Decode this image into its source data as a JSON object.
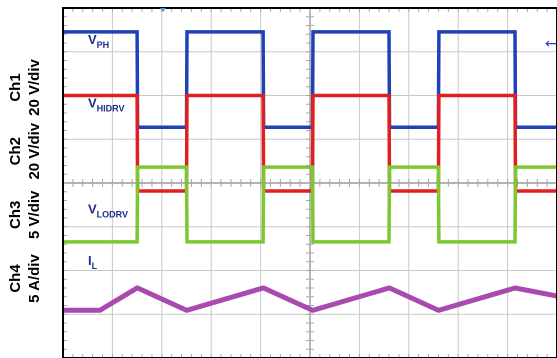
{
  "chart_data": {
    "type": "line",
    "title": "",
    "grid": true,
    "x": [
      0,
      0.75,
      1.5,
      1.51,
      2.5,
      2.51,
      4.05,
      4.06,
      5.05,
      5.06,
      6.6,
      6.61,
      7.6,
      7.61,
      9.15,
      9.16,
      10.0
    ],
    "series": [
      {
        "name": "VPH",
        "name_main": "V",
        "name_sub": "PH",
        "channel": "Ch1",
        "scale": "20 V/div",
        "color": "#2040b8",
        "ylim": [
          -1.25,
          3.75
        ],
        "values": [
          3.0,
          3.0,
          3.0,
          0.0,
          0.0,
          3.0,
          3.0,
          0.0,
          0.0,
          3.0,
          3.0,
          0.0,
          0.0,
          3.0,
          3.0,
          0.0,
          0.0
        ]
      },
      {
        "name": "VHIDRV",
        "name_main": "V",
        "name_sub": "HIDRV",
        "channel": "Ch2",
        "scale": "20 V/div",
        "color": "#e02020",
        "ylim": [
          -3.25,
          1.75
        ],
        "values": [
          1.0,
          1.0,
          1.0,
          -2.0,
          -2.0,
          1.0,
          1.0,
          -2.0,
          -2.0,
          1.0,
          1.0,
          -2.0,
          -2.0,
          1.0,
          1.0,
          -2.0,
          -2.0
        ]
      },
      {
        "name": "VLODRV",
        "name_main": "V",
        "name_sub": "LODRV",
        "channel": "Ch3",
        "scale": "5 V/div",
        "color": "#7cc832",
        "ylim": [
          -5.25,
          -0.25
        ],
        "values": [
          -3.6,
          -3.6,
          -3.6,
          -1.25,
          -1.25,
          -3.6,
          -3.6,
          -1.25,
          -1.25,
          -3.6,
          -3.6,
          -1.25,
          -1.25,
          -3.6,
          -3.6,
          -1.25,
          -1.25
        ]
      },
      {
        "name": "IL",
        "name_main": "I",
        "name_sub": "L",
        "channel": "Ch4",
        "scale": "5 A/div",
        "color": "#a84ab0",
        "ylim": [
          -7.25,
          -2.25
        ],
        "values": [
          -5.75,
          -5.75,
          -5.05,
          -5.05,
          -5.75,
          -5.75,
          -5.05,
          -5.05,
          -5.75,
          -5.75,
          -5.05,
          -5.05,
          -5.75,
          -5.75,
          -5.05,
          -5.05,
          -5.3
        ]
      }
    ],
    "xlim": [
      0,
      10
    ],
    "ylim": [
      -7.25,
      3.75
    ]
  }
}
